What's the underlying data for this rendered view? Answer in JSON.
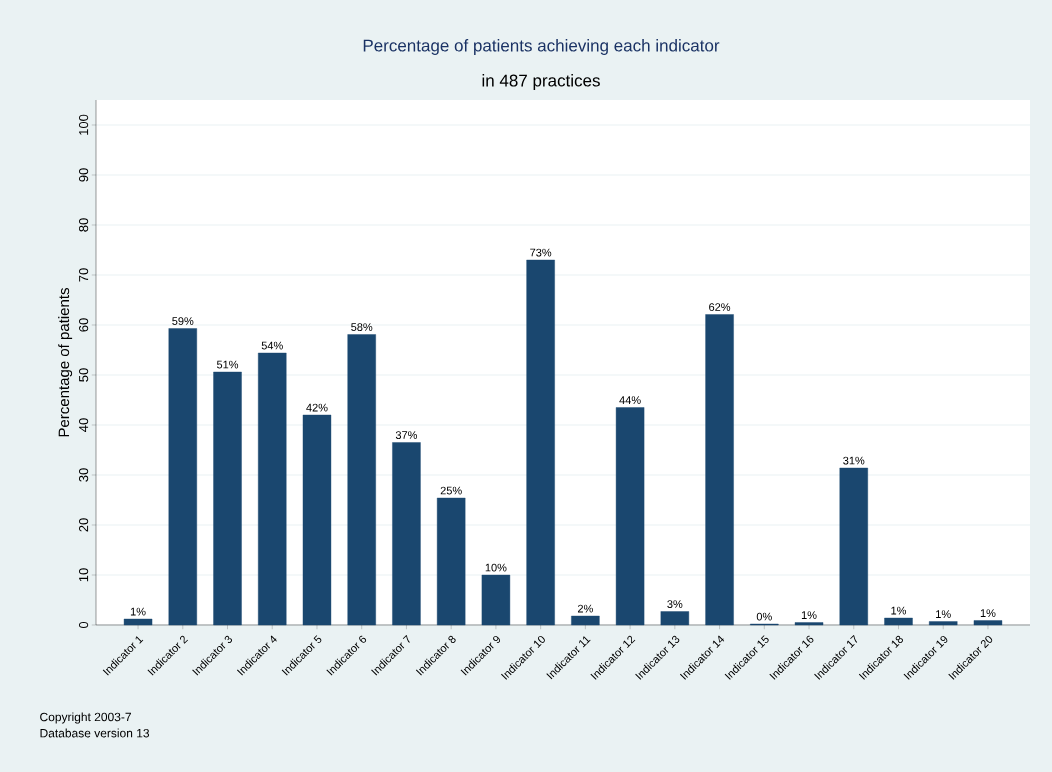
{
  "chart_data": {
    "type": "bar",
    "title": "Percentage of patients achieving each indicator",
    "subtitle": "in 487 practices",
    "ylabel": "Percentage of patients",
    "categories": [
      "Indicator 1",
      "Indicator 2",
      "Indicator 3",
      "Indicator 4",
      "Indicator 5",
      "Indicator 6",
      "Indicator 7",
      "Indicator 8",
      "Indicator 9",
      "Indicator 10",
      "Indicator 11",
      "Indicator 12",
      "Indicator 13",
      "Indicator 14",
      "Indicator 15",
      "Indicator 16",
      "Indicator 17",
      "Indicator 18",
      "Indicator 19",
      "Indicator 20"
    ],
    "values": [
      1.2,
      59.3,
      50.6,
      54.4,
      42,
      58.1,
      36.5,
      25.4,
      10,
      73,
      1.8,
      43.5,
      2.7,
      62.1,
      0.2,
      0.5,
      31.4,
      1.4,
      0.7,
      0.9
    ],
    "value_labels": [
      "1%",
      "59%",
      "51%",
      "54%",
      "42%",
      "58%",
      "37%",
      "25%",
      "10%",
      "73%",
      "2%",
      "44%",
      "3%",
      "62%",
      "0%",
      "1%",
      "31%",
      "1%",
      "1%",
      "1%"
    ],
    "color": "#1a476f",
    "ylim": [
      0,
      105
    ],
    "yticks": [
      0,
      10,
      20,
      30,
      40,
      50,
      60,
      70,
      80,
      90,
      100
    ],
    "grid": "y",
    "annotations": [
      "Copyright 2003-7",
      "Database version 13"
    ]
  }
}
